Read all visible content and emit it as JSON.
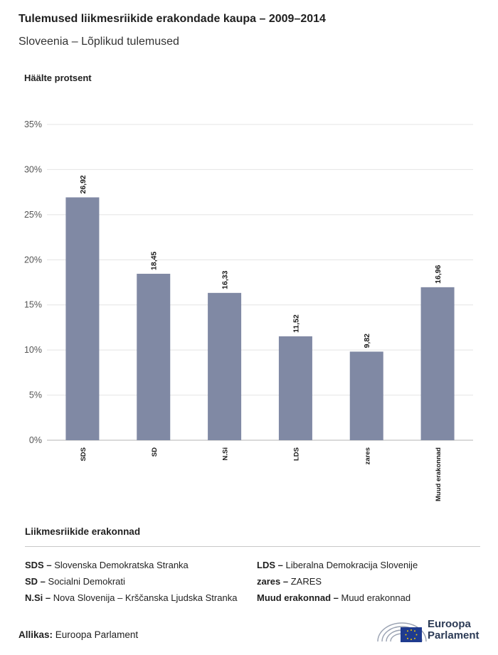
{
  "header": {
    "title": "Tulemused liikmesriikide erakondade kaupa – 2009–2014",
    "subtitle": "Sloveenia – Lõplikud tulemused"
  },
  "chart_data": {
    "type": "bar",
    "ylabel": "Häälte protsent",
    "categories": [
      "SDS",
      "SD",
      "N.Si",
      "LDS",
      "zares",
      "Muud erakonnad"
    ],
    "values": [
      26.92,
      18.45,
      16.33,
      11.52,
      9.82,
      16.96
    ],
    "value_labels": [
      "26,92",
      "18,45",
      "16,33",
      "11,52",
      "9,82",
      "16,96"
    ],
    "yticks": [
      "0%",
      "5%",
      "10%",
      "15%",
      "20%",
      "25%",
      "30%",
      "35%"
    ],
    "ylim": [
      0,
      35
    ],
    "bar_color": "#8089a4",
    "grid": true
  },
  "legend": {
    "title": "Liikmesriikide erakonnad",
    "items": [
      {
        "abbr": "SDS –",
        "name": "Slovenska Demokratska Stranka"
      },
      {
        "abbr": "SD –",
        "name": "Socialni Demokrati"
      },
      {
        "abbr": "N.Si –",
        "name": "Nova Slovenija – Krščanska Ljudska Stranka"
      },
      {
        "abbr": "LDS –",
        "name": "Liberalna Demokracija Slovenije"
      },
      {
        "abbr": "zares –",
        "name": "ZARES"
      },
      {
        "abbr": "Muud erakonnad –",
        "name": "Muud erakonnad"
      }
    ]
  },
  "footer": {
    "source_label": "Allikas:",
    "source_value": "Euroopa Parlament",
    "logo_line1": "Euroopa",
    "logo_line2": "Parlament",
    "logo_icon": "european-parliament-hemicycle-icon",
    "flag_icon": "eu-flag-icon"
  }
}
